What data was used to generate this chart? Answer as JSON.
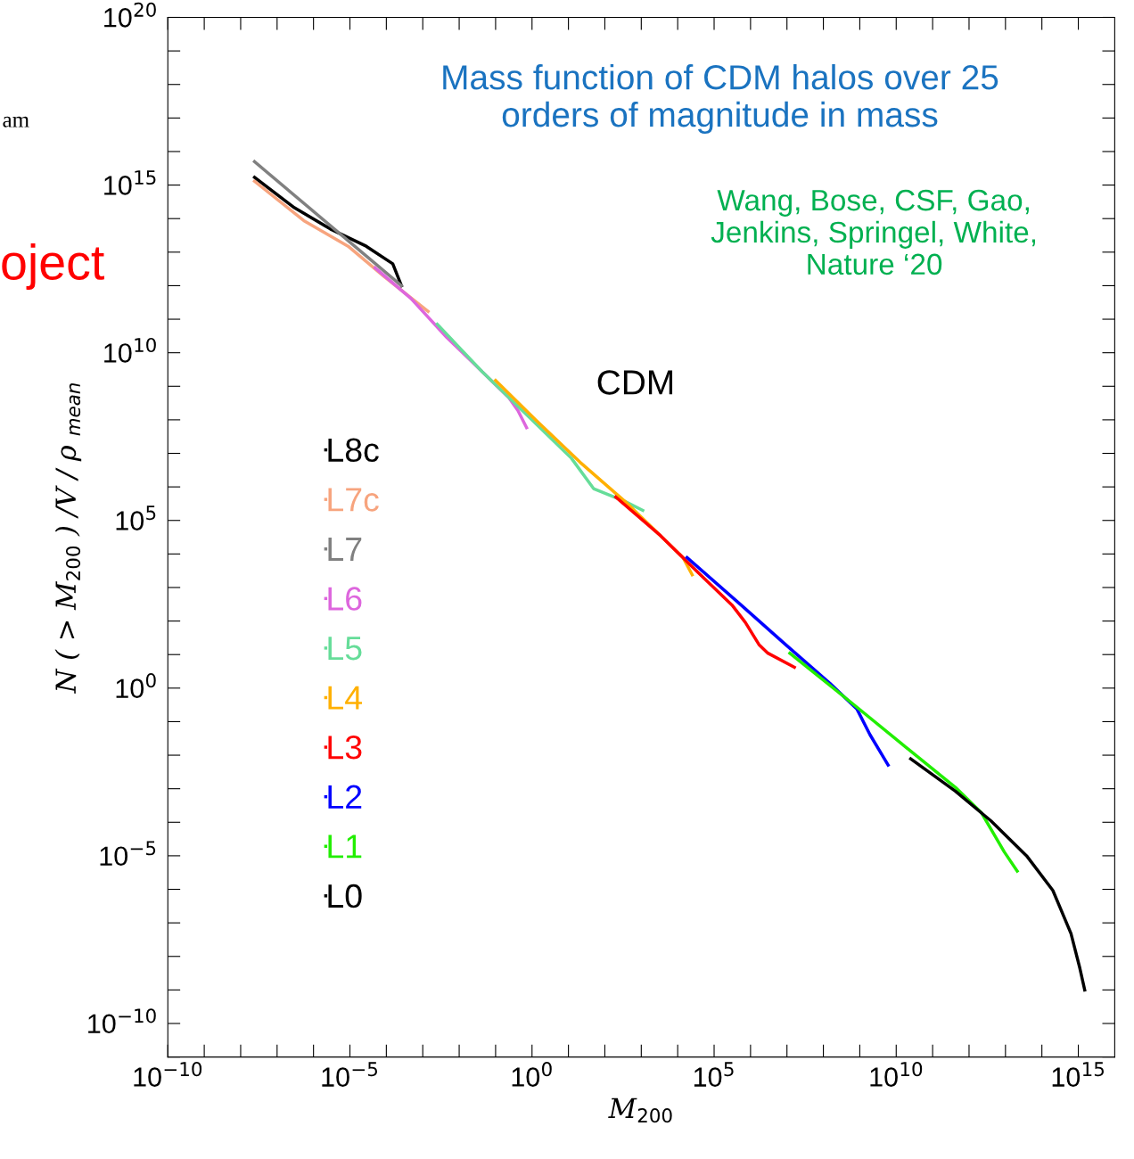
{
  "chart_data": {
    "type": "line",
    "title": "Mass function of CDM halos over 25\norders of magnitude in mass",
    "xlabel": "M$_{200}$",
    "ylabel": "N ( > M$_{200}$ ) /V / ρ $_{mean}$",
    "log": "xy",
    "legend": "left",
    "grid": false,
    "marker": "none",
    "line_style": "solid",
    "annotations": [
      "Wang, Bose, CSF, Gao,\nJenkins, Springel, White,\nNature ‘20",
      "CDM",
      "am",
      "oject"
    ],
    "xlim": [
      1e-10,
      1e+16
    ],
    "ylim": [
      1e-11,
      1e+20
    ],
    "xticks": [
      {
        "value": 1e-10,
        "label": "10$^{−10}$"
      },
      {
        "value": 1e-09,
        "label": null
      },
      {
        "value": 1e-08,
        "label": null
      },
      {
        "value": 1e-07,
        "label": null
      },
      {
        "value": 1e-06,
        "label": null
      },
      {
        "value": 1e-05,
        "label": "10$^{−5}$"
      },
      {
        "value": 0.0001,
        "label": null
      },
      {
        "value": 0.001,
        "label": null
      },
      {
        "value": 0.01,
        "label": null
      },
      {
        "value": 0.1,
        "label": null
      },
      {
        "value": 1,
        "label": "10$^{0}$"
      },
      {
        "value": 10,
        "label": null
      },
      {
        "value": 100,
        "label": null
      },
      {
        "value": 1000,
        "label": null
      },
      {
        "value": 10000,
        "label": null
      },
      {
        "value": 100000.0,
        "label": "10$^{5}$"
      },
      {
        "value": 1000000.0,
        "label": null
      },
      {
        "value": 10000000.0,
        "label": null
      },
      {
        "value": 100000000.0,
        "label": null
      },
      {
        "value": 1000000000.0,
        "label": null
      },
      {
        "value": 10000000000.0,
        "label": "10$^{10}$"
      },
      {
        "value": 100000000000.0,
        "label": null
      },
      {
        "value": 1000000000000.0,
        "label": null
      },
      {
        "value": 10000000000000.0,
        "label": null
      },
      {
        "value": 100000000000000.0,
        "label": null
      },
      {
        "value": 1000000000000000.0,
        "label": "10$^{15}$"
      }
    ],
    "yticks": [
      {
        "value": 1e-11,
        "label": null
      },
      {
        "value": 1e-10,
        "label": "10$^{−10}$"
      },
      {
        "value": 1e-09,
        "label": null
      },
      {
        "value": 1e-08,
        "label": null
      },
      {
        "value": 1e-07,
        "label": null
      },
      {
        "value": 1e-06,
        "label": null
      },
      {
        "value": 1e-05,
        "label": "10$^{−5}$"
      },
      {
        "value": 0.0001,
        "label": null
      },
      {
        "value": 0.001,
        "label": null
      },
      {
        "value": 0.01,
        "label": null
      },
      {
        "value": 0.1,
        "label": null
      },
      {
        "value": 1,
        "label": "10$^{0}$"
      },
      {
        "value": 10,
        "label": null
      },
      {
        "value": 100,
        "label": null
      },
      {
        "value": 1000,
        "label": null
      },
      {
        "value": 10000,
        "label": null
      },
      {
        "value": 100000.0,
        "label": "10$^{5}$"
      },
      {
        "value": 1000000.0,
        "label": null
      },
      {
        "value": 10000000.0,
        "label": null
      },
      {
        "value": 100000000.0,
        "label": null
      },
      {
        "value": 1000000000.0,
        "label": null
      },
      {
        "value": 10000000000.0,
        "label": "10$^{10}$"
      },
      {
        "value": 100000000000.0,
        "label": null
      },
      {
        "value": 1000000000000.0,
        "label": null
      },
      {
        "value": 10000000000000.0,
        "label": null
      },
      {
        "value": 100000000000000.0,
        "label": null
      },
      {
        "value": 1000000000000000.0,
        "label": "10$^{15}$"
      },
      {
        "value": 1e+16,
        "label": null
      },
      {
        "value": 1e+17,
        "label": null
      },
      {
        "value": 1e+18,
        "label": null
      },
      {
        "value": 1e+19,
        "label": null
      },
      {
        "value": 1e+20,
        "label": "10$^{20}$"
      }
    ],
    "series": [
      {
        "name": "L8c",
        "color": "#000000",
        "x": [
          2.4e-08,
          3e-07,
          2.9e-06,
          2.8e-05,
          0.00015,
          0.00026
        ],
        "values": [
          1700000000000000.0,
          210000000000000.0,
          49000000000000.0,
          15000000000000.0,
          4500000000000.0,
          1000000000000.0
        ]
      },
      {
        "name": "L7c",
        "color": "#f7a47e",
        "x": [
          2.4e-08,
          5.4e-07,
          8.9e-06,
          8.5e-05,
          0.0014
        ],
        "values": [
          1300000000000000.0,
          87000000000000.0,
          15000000000000.0,
          1900000000000.0,
          170000000000.0
        ]
      },
      {
        "name": "L7",
        "color": "#808080",
        "x": [
          2.4e-08,
          0.00026
        ],
        "values": [
          5000000000000000.0,
          1000000000000.0
        ]
      },
      {
        "name": "L6",
        "color": "#dd66dd",
        "x": [
          4.9e-05,
          0.00047,
          0.0045,
          0.043,
          0.23,
          0.41,
          0.71
        ],
        "values": [
          3400000000000.0,
          420000000000.0,
          29000000000.0,
          2700000000.0,
          460000000.0,
          190000000.0,
          58000000.0
        ]
      },
      {
        "name": "L5",
        "color": "#66dd99",
        "x": [
          0.0025,
          0.043,
          1.26,
          12,
          49,
          355,
          1100
        ],
        "values": [
          71000000000.0,
          2700000000.0,
          78000000.0,
          7200000.0,
          890000.0,
          370000.0,
          200000.0
        ]
      },
      {
        "name": "L4",
        "color": "#ffb000",
        "x": [
          0.1,
          1.26,
          21,
          355,
          3400,
          14000,
          25000
        ],
        "values": [
          1500000000.0,
          100000000.0,
          5400000.0,
          370000.0,
          35000.0,
          7800,
          2400
        ]
      },
      {
        "name": "L3",
        "color": "#ff0000",
        "x": [
          200,
          3400,
          32000,
          310000.0,
          720000.0,
          1700000.0,
          3000000.0,
          16000000.0
        ],
        "values": [
          500000.0,
          35000.0,
          3200,
          300,
          91,
          20,
          11,
          4.2
        ]
      },
      {
        "name": "L2",
        "color": "#0000ff",
        "x": [
          18000,
          550000.0,
          9100000.0,
          150000000.0,
          830000000.0,
          1900000000.0,
          6000000000.0
        ],
        "values": [
          7800,
          300,
          20,
          1.4,
          0.24,
          0.041,
          0.0051
        ]
      },
      {
        "name": "L1",
        "color": "#22ee00",
        "x": [
          12000000.0,
          480000000.0,
          14000000000.0,
          420000000000.0,
          2200000000000.0,
          9300000000000.0,
          21000000000000.0
        ],
        "values": [
          11,
          0.44,
          0.022,
          0.0011,
          0.00019,
          1.3e-05,
          3.5e-06
        ]
      },
      {
        "name": "L0",
        "color": "#000000",
        "x": [
          25000000000.0,
          420000000000.0,
          4000000000000.0,
          38000000000000.0,
          200000000000000.0,
          630000000000000.0,
          1100000000000000.0,
          1500000000000000.0
        ],
        "values": [
          0.0078,
          0.00085,
          0.00011,
          1e-05,
          9.3e-07,
          4.8e-08,
          4.5e-09,
          1e-09
        ]
      }
    ]
  }
}
